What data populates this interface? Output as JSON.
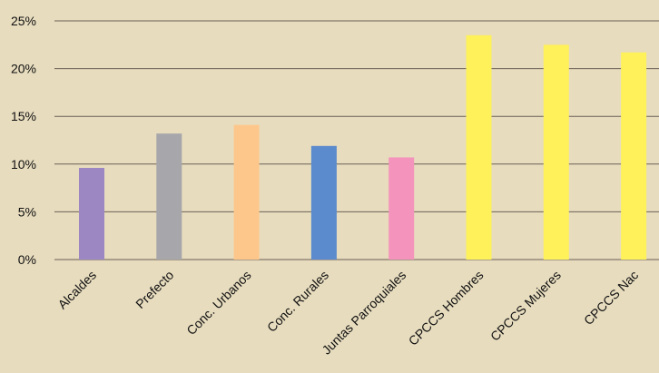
{
  "chart_data": {
    "type": "bar",
    "title": "",
    "xlabel": "",
    "ylabel": "",
    "ylim": [
      0,
      25
    ],
    "y_ticks": [
      0,
      5,
      10,
      15,
      20,
      25
    ],
    "y_tick_labels": [
      "0%",
      "5%",
      "10%",
      "15%",
      "20%",
      "25%"
    ],
    "grid": true,
    "legend": "none",
    "categories": [
      "Alcaldes",
      "Prefecto",
      "Conc. Urbanos",
      "Conc. Rurales",
      "Juntas Parroquiales",
      "CPCCS Hombres",
      "CPCCS Mujeres",
      "CPCCS Nac"
    ],
    "values": [
      9.6,
      13.2,
      14.1,
      11.9,
      10.7,
      23.5,
      22.5,
      21.7
    ],
    "colors": [
      "#9c87c3",
      "#a7a7ab",
      "#fdc78b",
      "#5b8bcc",
      "#f494bc",
      "#fef15a",
      "#fef15a",
      "#fef15a"
    ],
    "background_color": "#e7dcbe",
    "grid_color": "#6a6055"
  }
}
